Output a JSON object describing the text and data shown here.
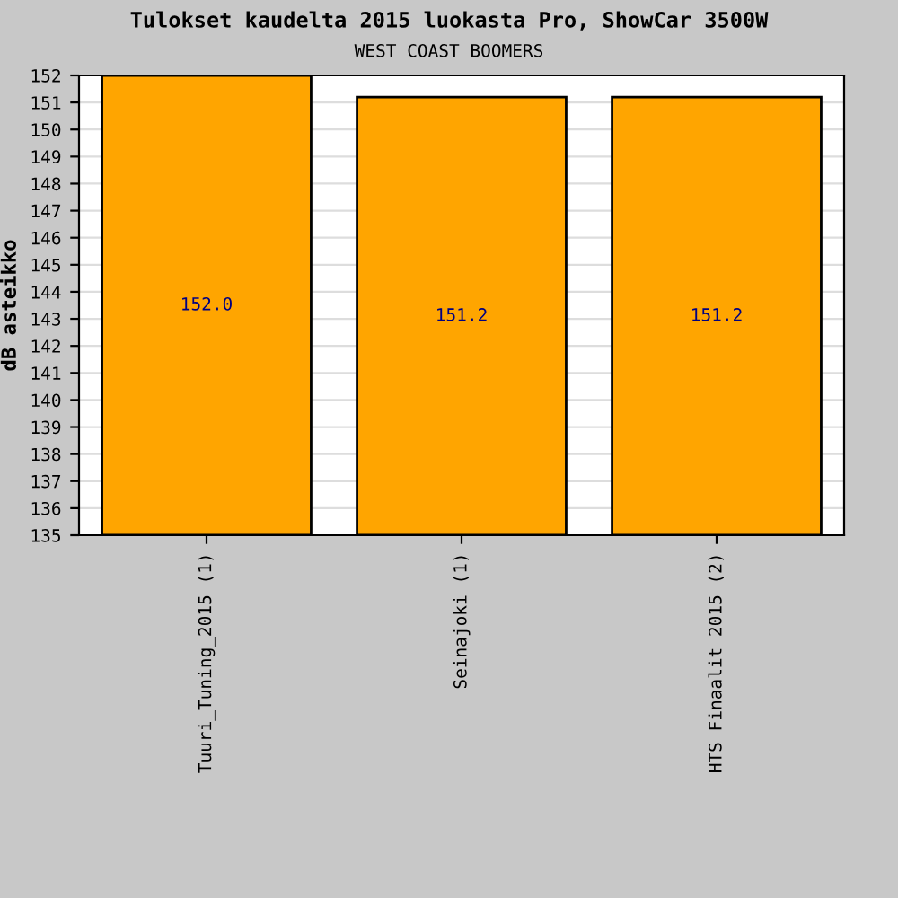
{
  "chart_data": {
    "type": "bar",
    "title": "Tulokset kaudelta 2015 luokasta Pro, ShowCar 3500W",
    "subtitle": "WEST COAST BOOMERS",
    "ylabel": "dB asteikko",
    "categories": [
      "Tuuri_Tuning_2015 (1)",
      "Seinajoki (1)",
      "HTS Finaalit 2015 (2)"
    ],
    "values": [
      152.0,
      151.2,
      151.2
    ],
    "color": "#ffa500",
    "value_labels": [
      "152.0",
      "151.2",
      "151.2"
    ],
    "ylim": [
      135,
      152
    ],
    "yticks": [
      135,
      136,
      137,
      138,
      139,
      140,
      141,
      142,
      143,
      144,
      145,
      146,
      147,
      148,
      149,
      150,
      151,
      152
    ],
    "grid": "y"
  }
}
